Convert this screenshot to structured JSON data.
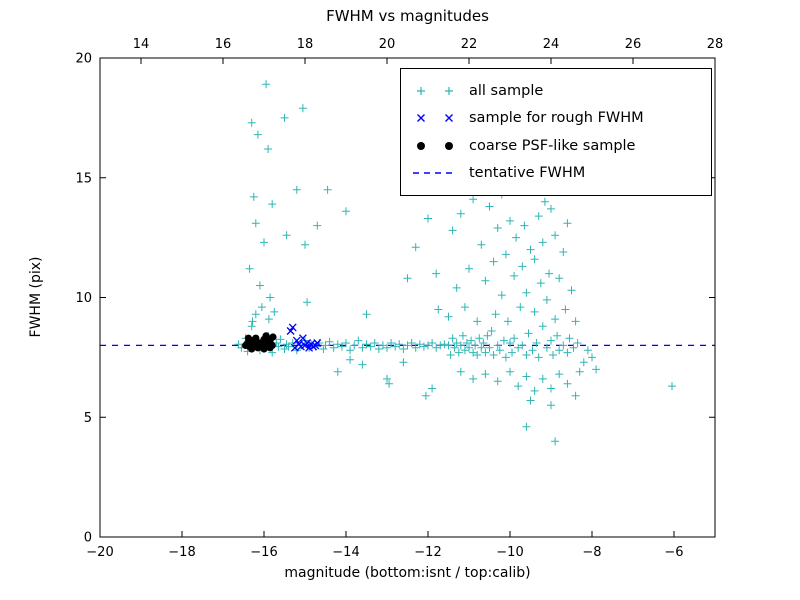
{
  "chart_data": {
    "type": "scatter",
    "title": "FWHM vs magnitudes",
    "xlabel": "magnitude (bottom:isnt / top:calib)",
    "ylabel": "FWHM (pix)",
    "xlim": [
      -20,
      -5
    ],
    "xlim_top": [
      13,
      28
    ],
    "ylim": [
      0,
      20
    ],
    "xticks_bottom": [
      -20,
      -18,
      -16,
      -14,
      -12,
      -10,
      -8,
      -6
    ],
    "xticks_top": [
      14,
      16,
      18,
      20,
      22,
      24,
      26,
      28
    ],
    "yticks": [
      0,
      5,
      10,
      15,
      20
    ],
    "grid": false,
    "legend_position": "upper right",
    "tentative_fwhm": 8.0,
    "series": [
      {
        "name": "all sample",
        "marker": "plus",
        "color": "#2fb5b5",
        "points": [
          [
            -16.62,
            8.05
          ],
          [
            -16.55,
            7.9
          ],
          [
            -16.45,
            8.3
          ],
          [
            -16.4,
            7.75
          ],
          [
            -16.35,
            8.1
          ],
          [
            -16.3,
            8.8
          ],
          [
            -16.25,
            7.95
          ],
          [
            -16.2,
            9.3
          ],
          [
            -16.15,
            8.05
          ],
          [
            -16.1,
            7.8
          ],
          [
            -16.0,
            8.15
          ],
          [
            -15.95,
            7.9
          ],
          [
            -15.9,
            8.4
          ],
          [
            -15.85,
            8.0
          ],
          [
            -15.8,
            7.7
          ],
          [
            -15.7,
            8.1
          ],
          [
            -15.65,
            7.95
          ],
          [
            -15.6,
            8.25
          ],
          [
            -15.5,
            7.85
          ],
          [
            -15.45,
            8.05
          ],
          [
            -15.4,
            7.95
          ],
          [
            -15.3,
            8.1
          ],
          [
            -15.2,
            7.8
          ],
          [
            -15.1,
            8.0
          ],
          [
            -15.0,
            8.2
          ],
          [
            -14.9,
            7.9
          ],
          [
            -14.85,
            8.05
          ],
          [
            -14.75,
            7.95
          ],
          [
            -14.65,
            8.1
          ],
          [
            -14.55,
            7.85
          ],
          [
            -14.5,
            8.0
          ],
          [
            -14.4,
            8.15
          ],
          [
            -14.3,
            7.9
          ],
          [
            -14.2,
            8.05
          ],
          [
            -14.1,
            7.95
          ],
          [
            -14.0,
            8.1
          ],
          [
            -13.9,
            7.8
          ],
          [
            -13.8,
            8.0
          ],
          [
            -13.7,
            8.2
          ],
          [
            -13.6,
            7.9
          ],
          [
            -13.5,
            8.05
          ],
          [
            -13.4,
            7.95
          ],
          [
            -13.3,
            8.1
          ],
          [
            -13.2,
            7.85
          ],
          [
            -13.1,
            8.0
          ],
          [
            -13.0,
            7.9
          ],
          [
            -12.9,
            8.1
          ],
          [
            -12.8,
            7.95
          ],
          [
            -12.7,
            8.05
          ],
          [
            -12.6,
            7.85
          ],
          [
            -12.5,
            8.0
          ],
          [
            -12.4,
            8.1
          ],
          [
            -12.3,
            7.9
          ],
          [
            -12.2,
            8.05
          ],
          [
            -12.1,
            7.95
          ],
          [
            -12.0,
            8.0
          ],
          [
            -11.9,
            8.1
          ],
          [
            -11.8,
            7.9
          ],
          [
            -11.7,
            8.0
          ],
          [
            -11.6,
            8.05
          ],
          [
            -16.35,
            11.2
          ],
          [
            -16.3,
            17.3
          ],
          [
            -16.28,
            9.0
          ],
          [
            -16.25,
            14.2
          ],
          [
            -16.2,
            13.1
          ],
          [
            -16.15,
            16.8
          ],
          [
            -16.1,
            10.5
          ],
          [
            -16.05,
            9.6
          ],
          [
            -16.0,
            12.3
          ],
          [
            -15.95,
            18.9
          ],
          [
            -15.9,
            16.2
          ],
          [
            -15.88,
            9.1
          ],
          [
            -15.85,
            10.0
          ],
          [
            -15.8,
            13.9
          ],
          [
            -15.75,
            9.4
          ],
          [
            -15.5,
            17.5
          ],
          [
            -15.45,
            12.6
          ],
          [
            -15.2,
            14.5
          ],
          [
            -15.05,
            17.9
          ],
          [
            -15.0,
            12.2
          ],
          [
            -14.95,
            9.8
          ],
          [
            -14.7,
            13.0
          ],
          [
            -14.45,
            14.5
          ],
          [
            -14.2,
            6.9
          ],
          [
            -14.0,
            13.6
          ],
          [
            -13.9,
            7.4
          ],
          [
            -13.6,
            7.2
          ],
          [
            -13.5,
            9.3
          ],
          [
            -13.0,
            6.6
          ],
          [
            -12.95,
            6.4
          ],
          [
            -12.6,
            7.3
          ],
          [
            -12.5,
            10.8
          ],
          [
            -12.3,
            12.1
          ],
          [
            -12.15,
            14.4
          ],
          [
            -12.0,
            13.3
          ],
          [
            -11.9,
            6.2
          ],
          [
            -11.8,
            11.0
          ],
          [
            -11.75,
            9.5
          ],
          [
            -12.05,
            5.9
          ],
          [
            -11.5,
            8.0
          ],
          [
            -11.5,
            9.2
          ],
          [
            -11.45,
            7.6
          ],
          [
            -11.4,
            8.3
          ],
          [
            -11.4,
            12.8
          ],
          [
            -11.35,
            7.9
          ],
          [
            -11.3,
            8.1
          ],
          [
            -11.3,
            10.4
          ],
          [
            -11.25,
            7.7
          ],
          [
            -11.2,
            8.0
          ],
          [
            -11.2,
            13.5
          ],
          [
            -11.15,
            8.4
          ],
          [
            -11.1,
            7.8
          ],
          [
            -11.1,
            9.6
          ],
          [
            -11.05,
            8.1
          ],
          [
            -11.0,
            7.9
          ],
          [
            -11.0,
            11.2
          ],
          [
            -10.95,
            8.2
          ],
          [
            -10.9,
            7.7
          ],
          [
            -10.9,
            14.1
          ],
          [
            -10.85,
            8.0
          ],
          [
            -10.8,
            9.0
          ],
          [
            -10.8,
            7.6
          ],
          [
            -10.75,
            8.3
          ],
          [
            -10.7,
            12.2
          ],
          [
            -10.7,
            7.9
          ],
          [
            -10.65,
            8.1
          ],
          [
            -10.6,
            10.7
          ],
          [
            -10.6,
            7.7
          ],
          [
            -10.55,
            8.4
          ],
          [
            -10.5,
            13.8
          ],
          [
            -10.5,
            7.9
          ],
          [
            -10.45,
            8.6
          ],
          [
            -10.4,
            11.5
          ],
          [
            -10.4,
            7.6
          ],
          [
            -10.35,
            9.3
          ],
          [
            -10.3,
            8.0
          ],
          [
            -10.3,
            12.9
          ],
          [
            -10.25,
            7.8
          ],
          [
            -10.2,
            10.1
          ],
          [
            -10.2,
            14.3
          ],
          [
            -10.15,
            8.2
          ],
          [
            -10.1,
            7.5
          ],
          [
            -10.1,
            11.8
          ],
          [
            -10.05,
            9.0
          ],
          [
            -10.0,
            8.1
          ],
          [
            -10.0,
            13.2
          ],
          [
            -9.95,
            7.7
          ],
          [
            -9.9,
            10.9
          ],
          [
            -9.9,
            8.3
          ],
          [
            -9.85,
            12.5
          ],
          [
            -9.8,
            7.9
          ],
          [
            -9.8,
            14.6
          ],
          [
            -9.75,
            9.6
          ],
          [
            -9.7,
            8.0
          ],
          [
            -9.7,
            11.3
          ],
          [
            -9.65,
            13.0
          ],
          [
            -9.6,
            7.6
          ],
          [
            -9.6,
            10.2
          ],
          [
            -9.55,
            8.5
          ],
          [
            -9.5,
            12.0
          ],
          [
            -9.5,
            14.9
          ],
          [
            -9.45,
            7.8
          ],
          [
            -9.4,
            9.4
          ],
          [
            -9.4,
            11.6
          ],
          [
            -9.35,
            8.1
          ],
          [
            -9.3,
            13.4
          ],
          [
            -9.3,
            7.5
          ],
          [
            -9.25,
            10.6
          ],
          [
            -9.2,
            8.8
          ],
          [
            -9.2,
            12.3
          ],
          [
            -9.15,
            14.0
          ],
          [
            -9.1,
            7.9
          ],
          [
            -9.1,
            9.9
          ],
          [
            -9.05,
            11.0
          ],
          [
            -9.0,
            8.2
          ],
          [
            -9.0,
            13.7
          ],
          [
            -8.95,
            7.6
          ],
          [
            -8.9,
            9.1
          ],
          [
            -8.9,
            12.6
          ],
          [
            -8.85,
            8.4
          ],
          [
            -8.8,
            10.8
          ],
          [
            -8.8,
            7.8
          ],
          [
            -8.75,
            14.4
          ],
          [
            -8.7,
            8.0
          ],
          [
            -8.7,
            11.9
          ],
          [
            -8.65,
            9.5
          ],
          [
            -8.6,
            7.7
          ],
          [
            -8.6,
            13.1
          ],
          [
            -8.55,
            8.3
          ],
          [
            -8.5,
            10.3
          ],
          [
            -8.45,
            7.9
          ],
          [
            -8.4,
            9.0
          ],
          [
            -8.35,
            8.1
          ],
          [
            -11.2,
            6.9
          ],
          [
            -10.9,
            6.6
          ],
          [
            -10.6,
            6.8
          ],
          [
            -10.3,
            6.5
          ],
          [
            -10.0,
            6.9
          ],
          [
            -9.8,
            6.3
          ],
          [
            -9.6,
            6.7
          ],
          [
            -9.4,
            6.1
          ],
          [
            -9.2,
            6.6
          ],
          [
            -9.0,
            6.2
          ],
          [
            -8.8,
            6.8
          ],
          [
            -8.6,
            6.4
          ],
          [
            -9.5,
            5.7
          ],
          [
            -9.0,
            5.5
          ],
          [
            -8.9,
            4.0
          ],
          [
            -9.6,
            4.6
          ],
          [
            -8.4,
            5.9
          ],
          [
            -8.3,
            6.9
          ],
          [
            -8.2,
            7.3
          ],
          [
            -8.1,
            7.8
          ],
          [
            -8.0,
            7.5
          ],
          [
            -7.9,
            7.0
          ],
          [
            -6.05,
            6.3
          ],
          [
            -9.7,
            15.2
          ],
          [
            -9.3,
            15.0
          ],
          [
            -10.1,
            14.9
          ]
        ]
      },
      {
        "name": "sample for rough FWHM",
        "marker": "x",
        "color": "#0000ff",
        "points": [
          [
            -15.35,
            8.6
          ],
          [
            -15.3,
            8.75
          ],
          [
            -15.25,
            7.9
          ],
          [
            -15.2,
            8.2
          ],
          [
            -15.15,
            8.05
          ],
          [
            -15.1,
            7.95
          ],
          [
            -15.05,
            8.3
          ],
          [
            -15.0,
            8.0
          ],
          [
            -14.95,
            8.1
          ],
          [
            -14.9,
            7.9
          ],
          [
            -14.85,
            8.05
          ],
          [
            -14.8,
            7.95
          ],
          [
            -14.75,
            8.0
          ],
          [
            -14.7,
            8.1
          ]
        ]
      },
      {
        "name": "coarse PSF-like sample",
        "marker": "dot",
        "color": "#000000",
        "points": [
          [
            -16.45,
            8.0
          ],
          [
            -16.4,
            8.1
          ],
          [
            -16.38,
            8.3
          ],
          [
            -16.35,
            7.95
          ],
          [
            -16.3,
            8.2
          ],
          [
            -16.3,
            7.85
          ],
          [
            -16.25,
            8.05
          ],
          [
            -16.2,
            8.3
          ],
          [
            -16.18,
            8.15
          ],
          [
            -16.15,
            7.9
          ],
          [
            -16.1,
            8.1
          ],
          [
            -16.05,
            8.0
          ],
          [
            -16.0,
            8.25
          ],
          [
            -16.0,
            7.85
          ],
          [
            -15.95,
            8.4
          ],
          [
            -15.9,
            8.05
          ],
          [
            -15.85,
            7.9
          ],
          [
            -15.85,
            8.2
          ],
          [
            -15.8,
            8.0
          ],
          [
            -15.78,
            8.35
          ]
        ]
      },
      {
        "name": "tentative FWHM",
        "type": "hline",
        "y": 8.0,
        "style": "dashed",
        "color": "#0000ff"
      }
    ]
  },
  "frame_color": "#000000"
}
